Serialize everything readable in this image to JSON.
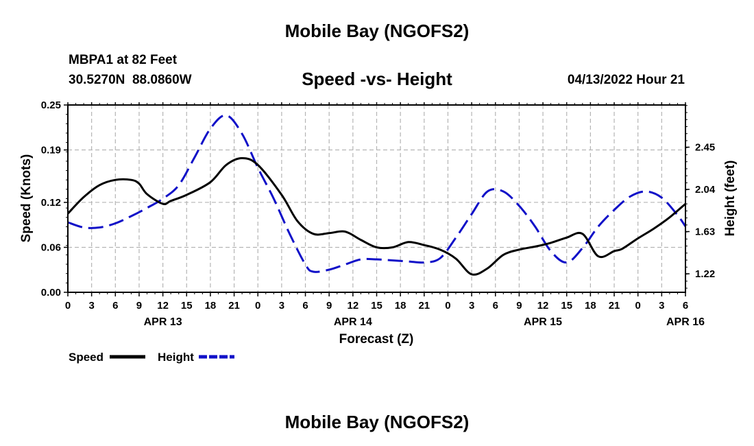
{
  "header": {
    "title": "Mobile Bay (NGOFS2)",
    "station": "MBPA1 at 82 Feet",
    "coords": "30.5270N  88.0860W",
    "run_time": "04/13/2022 Hour 21"
  },
  "footer": {
    "title": "Mobile Bay (NGOFS2)"
  },
  "chart_data": {
    "type": "line",
    "title": "Speed -vs- Height",
    "xlabel": "Forecast (Z)",
    "ylabel": "Speed (Knots)",
    "y2label": "Height (feet)",
    "ylim": [
      0,
      0.25
    ],
    "y2lim": [
      1.04,
      2.86
    ],
    "xlim": [
      0,
      78
    ],
    "grid": true,
    "colors": {
      "speed": "#000000",
      "height": "#1010c8",
      "grid": "#b4b4b4"
    },
    "yticks": [
      "0.00",
      "0.06",
      "0.12",
      "0.19",
      "0.25"
    ],
    "y2ticks": [
      "1.22",
      "1.63",
      "2.04",
      "2.45"
    ],
    "xticks": [
      "0",
      "3",
      "6",
      "9",
      "12",
      "15",
      "18",
      "21",
      "0",
      "3",
      "6",
      "9",
      "12",
      "15",
      "18",
      "21",
      "0",
      "3",
      "6",
      "9",
      "12",
      "15",
      "18",
      "21",
      "0",
      "3",
      "6"
    ],
    "date_labels": [
      {
        "label": "APR 13",
        "hour": 12
      },
      {
        "label": "APR 14",
        "hour": 36
      },
      {
        "label": "APR 15",
        "hour": 60
      },
      {
        "label": "APR 16",
        "hour": 78
      }
    ],
    "legend": [
      {
        "name": "Speed",
        "style": "solid",
        "color": "#000000"
      },
      {
        "name": "Height",
        "style": "dashed",
        "color": "#1010c8"
      }
    ],
    "series": [
      {
        "name": "Speed",
        "axis": "left",
        "style": "solid",
        "color": "#000000",
        "x": [
          0,
          2,
          4,
          6,
          8,
          9,
          10,
          12,
          13,
          15,
          18,
          20,
          22,
          24,
          27,
          29,
          31,
          33,
          35,
          37,
          39,
          41,
          43,
          45,
          47,
          49,
          51,
          53,
          55,
          57,
          59,
          61,
          63,
          65,
          67,
          69,
          70,
          72,
          74,
          76,
          78
        ],
        "values": [
          0.105,
          0.127,
          0.143,
          0.15,
          0.15,
          0.145,
          0.131,
          0.118,
          0.122,
          0.13,
          0.147,
          0.17,
          0.179,
          0.17,
          0.13,
          0.095,
          0.078,
          0.079,
          0.081,
          0.07,
          0.06,
          0.06,
          0.067,
          0.063,
          0.057,
          0.045,
          0.024,
          0.032,
          0.05,
          0.057,
          0.061,
          0.066,
          0.073,
          0.078,
          0.048,
          0.055,
          0.058,
          0.072,
          0.085,
          0.1,
          0.118
        ]
      },
      {
        "name": "Height",
        "axis": "right",
        "style": "dashed",
        "color": "#1010c8",
        "x": [
          0,
          2,
          4,
          6,
          8,
          10,
          12,
          14,
          16,
          18,
          20,
          22,
          24,
          26,
          28,
          30,
          31,
          33,
          35,
          37,
          39,
          41,
          43,
          45,
          47,
          49,
          51,
          53,
          55,
          57,
          59,
          61,
          63,
          65,
          67,
          69,
          71,
          73,
          75,
          77,
          78
        ],
        "values": [
          1.72,
          1.67,
          1.67,
          1.71,
          1.78,
          1.86,
          1.95,
          2.08,
          2.35,
          2.63,
          2.76,
          2.58,
          2.25,
          1.95,
          1.61,
          1.31,
          1.24,
          1.26,
          1.31,
          1.36,
          1.36,
          1.35,
          1.34,
          1.33,
          1.37,
          1.57,
          1.8,
          2.02,
          2.02,
          1.88,
          1.68,
          1.44,
          1.33,
          1.47,
          1.68,
          1.84,
          1.97,
          2.02,
          1.96,
          1.79,
          1.68
        ]
      }
    ]
  }
}
